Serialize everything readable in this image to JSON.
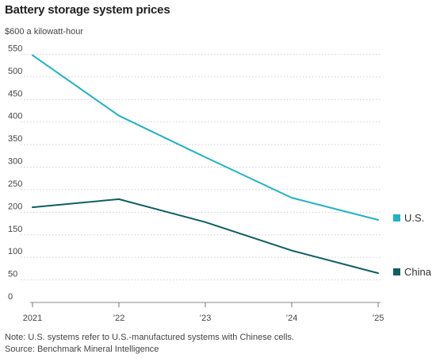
{
  "title": "Battery storage system prices",
  "chart_data": {
    "type": "line",
    "unit_label": "$600 a kilowatt-hour",
    "x": [
      2021,
      2022,
      2023,
      2024,
      2025
    ],
    "x_tick_labels": [
      "2021",
      "’22",
      "’23",
      "’24",
      "’25"
    ],
    "y_ticks": [
      0,
      50,
      100,
      150,
      200,
      250,
      300,
      350,
      400,
      450,
      500,
      550
    ],
    "ylim": [
      0,
      600
    ],
    "xlim": [
      2021,
      2025
    ],
    "grid": true,
    "legend": "right",
    "series": [
      {
        "name": "U.S.",
        "color": "#1fb3c4",
        "points": [
          [
            2021,
            548
          ],
          [
            2022,
            414
          ],
          [
            2023,
            322
          ],
          [
            2024,
            232
          ],
          [
            2025,
            183
          ]
        ]
      },
      {
        "name": "China",
        "color": "#0e5e63",
        "points": [
          [
            2021,
            211
          ],
          [
            2022,
            229
          ],
          [
            2023,
            178
          ],
          [
            2024,
            115
          ],
          [
            2025,
            65
          ]
        ]
      }
    ]
  },
  "footer": {
    "note": "Note: U.S. systems refer to U.S.-manufactured systems with Chinese cells.",
    "source": "Source: Benchmark Mineral Intelligence"
  }
}
